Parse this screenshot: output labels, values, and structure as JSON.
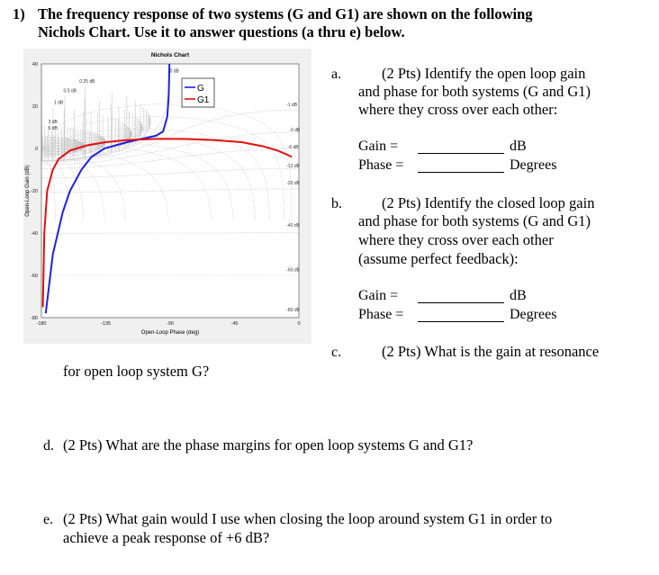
{
  "question": {
    "number": "1)",
    "title_line1": "The frequency response of two systems (G and G1) are shown on the following",
    "title_line2": "Nichols Chart. Use it to answer questions (a thru e) below."
  },
  "chart_data": {
    "type": "line",
    "title": "Nichols Chart",
    "xlabel": "Open-Loop Phase (deg)",
    "ylabel": "Open-Loop Gain (dB)",
    "xlim": [
      -180,
      0
    ],
    "ylim": [
      -80,
      40
    ],
    "xticks": [
      "-180",
      "-135",
      "-90",
      "-45",
      "0"
    ],
    "yticks": [
      "40",
      "20",
      "0",
      "-20",
      "-40",
      "-60",
      "-80"
    ],
    "grid": true,
    "legend_placement": "top-center",
    "contour_labels": [
      "0 dB",
      "0.25 dB",
      "0.5 dB",
      "1 dB",
      "3 dB",
      "6 dB",
      "-1 dB",
      "-3 dB",
      "-6 dB",
      "-12 dB",
      "-20 dB",
      "-40 dB",
      "-60 dB",
      "-80 dB"
    ],
    "series": [
      {
        "name": "G",
        "color": "#2020e0",
        "points": [
          [
            -177,
            -78
          ],
          [
            -172,
            -50
          ],
          [
            -165,
            -30
          ],
          [
            -160,
            -20
          ],
          [
            -152,
            -10
          ],
          [
            -145,
            -4
          ],
          [
            -136,
            0
          ],
          [
            -120,
            3
          ],
          [
            -110,
            4.5
          ],
          [
            -100,
            6
          ],
          [
            -95,
            8
          ],
          [
            -92,
            15
          ],
          [
            -91,
            25
          ],
          [
            -90.5,
            40
          ]
        ]
      },
      {
        "name": "G1",
        "color": "#e01010",
        "points": [
          [
            -179,
            -75
          ],
          [
            -178,
            -40
          ],
          [
            -176,
            -20
          ],
          [
            -172,
            -10
          ],
          [
            -168,
            -5
          ],
          [
            -160,
            -1
          ],
          [
            -148,
            1.5
          ],
          [
            -135,
            3
          ],
          [
            -120,
            4
          ],
          [
            -100,
            4.5
          ],
          [
            -80,
            4.5
          ],
          [
            -60,
            4
          ],
          [
            -40,
            3
          ],
          [
            -25,
            1
          ],
          [
            -15,
            -1
          ],
          [
            -8,
            -3
          ],
          [
            -5,
            -4
          ]
        ]
      }
    ]
  },
  "parts": {
    "a": {
      "letter": "a.",
      "line1": "(2 Pts) Identify the open loop gain",
      "line2": "and phase for both systems (G and G1)",
      "line3": "where they cross over each other:",
      "gain_label": "Gain =",
      "gain_unit": "dB",
      "phase_label": "Phase =",
      "phase_unit": "Degrees"
    },
    "b": {
      "letter": "b.",
      "line1": "(2 Pts) Identify the closed loop gain",
      "line2": "and phase for both systems (G and G1)",
      "line3": "where they cross over each other",
      "line4": "(assume perfect feedback):",
      "gain_label": "Gain =",
      "gain_unit": "dB",
      "phase_label": "Phase =",
      "phase_unit": "Degrees"
    },
    "c": {
      "letter": "c.",
      "line1": "(2 Pts) What is the gain at resonance",
      "line2": "for open loop system G?"
    },
    "d": {
      "letter": "d.",
      "text": "(2 Pts) What are the phase margins for open loop systems G and G1?"
    },
    "e": {
      "letter": "e.",
      "line1": "(2 Pts) What gain would I use when closing the loop around system G1 in order to",
      "line2": "achieve a peak response of +6 dB?"
    }
  }
}
